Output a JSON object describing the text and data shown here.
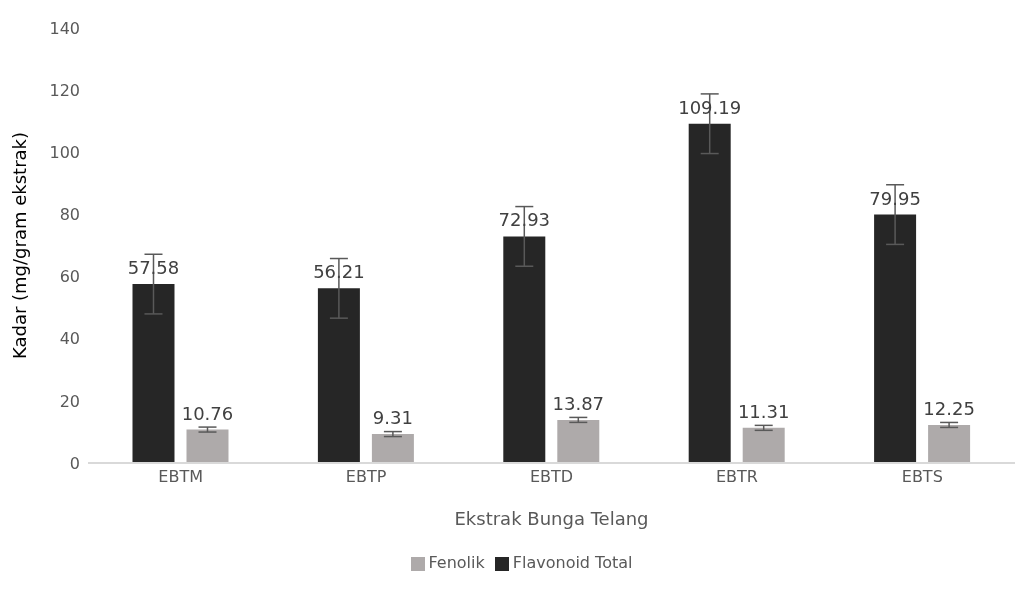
{
  "chart_data": {
    "type": "bar",
    "xlabel": "Ekstrak Bunga Telang",
    "ylabel": "Kadar (mg/gram ekstrak)",
    "categories": [
      "EBTM",
      "EBTP",
      "EBTD",
      "EBTR",
      "EBTS"
    ],
    "series": [
      {
        "name": "Flavonoid Total",
        "color": "#262626",
        "values": [
          57.58,
          56.21,
          72.93,
          109.19,
          79.95
        ],
        "errors": [
          9.6,
          9.6,
          9.6,
          9.6,
          9.6
        ]
      },
      {
        "name": "Fenolik",
        "color": "#aeaaaa",
        "values": [
          10.76,
          9.31,
          13.87,
          11.31,
          12.25
        ],
        "errors": [
          0.8,
          0.8,
          0.8,
          0.8,
          0.8
        ]
      }
    ],
    "ylim": [
      0,
      140
    ],
    "yticks": [
      0,
      20,
      40,
      60,
      80,
      100,
      120,
      140
    ],
    "grid": false,
    "legend": "bottom",
    "data_labels": true
  }
}
